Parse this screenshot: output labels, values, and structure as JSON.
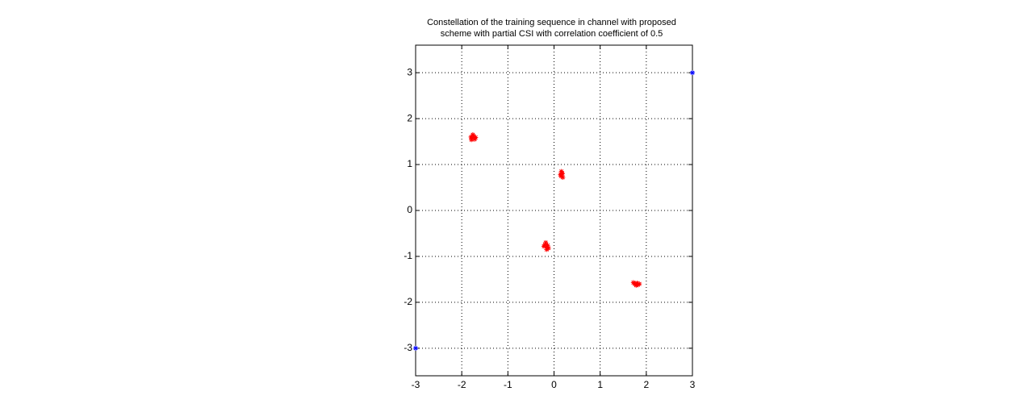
{
  "chart_data": {
    "type": "scatter",
    "title": [
      "Constellation of the training sequence in channel with proposed",
      "scheme with partial CSI with correlation coefficient of 0.5"
    ],
    "series": [
      {
        "color": "#ff0000",
        "marker": "*",
        "x": [
          -1.78,
          -1.74,
          -1.72,
          -1.8,
          -1.76,
          -1.7,
          -1.79,
          0.15,
          0.18,
          0.16,
          0.19,
          0.14,
          0.17,
          -0.2,
          -0.15,
          -0.18,
          -0.12,
          -0.22,
          -0.16,
          -0.14,
          1.75,
          1.8,
          1.78,
          1.85,
          1.72,
          1.82
        ],
        "values": [
          1.58,
          1.62,
          1.55,
          1.6,
          1.65,
          1.59,
          1.54,
          0.75,
          0.8,
          0.85,
          0.72,
          0.78,
          0.82,
          -0.75,
          -0.8,
          -0.7,
          -0.82,
          -0.78,
          -0.85,
          -0.76,
          -1.6,
          -1.58,
          -1.63,
          -1.6,
          -1.57,
          -1.62
        ]
      },
      {
        "color": "#0000ff",
        "marker": "*",
        "x": [
          3,
          -3
        ],
        "values": [
          3,
          -3
        ]
      }
    ],
    "xlim": [
      -3,
      3
    ],
    "ylim": [
      -3.6,
      3.6
    ],
    "xticks": [
      -3,
      -2,
      -1,
      0,
      1,
      2,
      3
    ],
    "yticks": [
      -3,
      -2,
      -1,
      0,
      1,
      2,
      3
    ],
    "grid": true
  }
}
